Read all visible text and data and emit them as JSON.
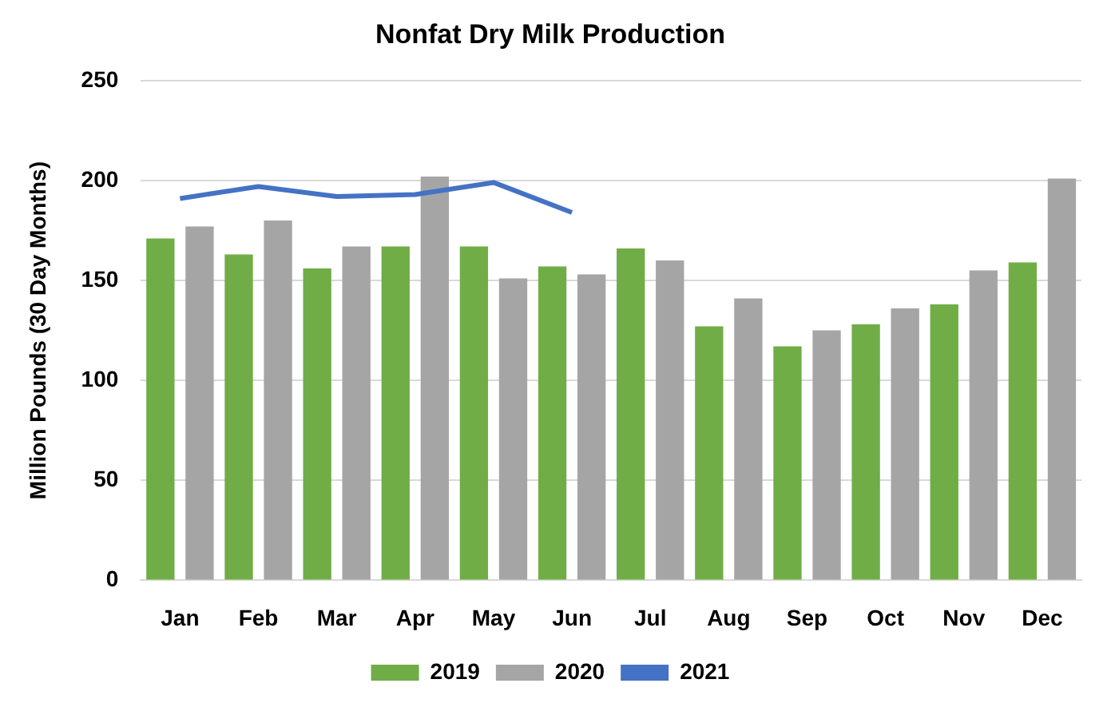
{
  "chart_data": {
    "type": "bar",
    "title": "Nonfat Dry Milk Production",
    "ylabel": "Million Pounds (30 Day Months)",
    "categories": [
      "Jan",
      "Feb",
      "Mar",
      "Apr",
      "May",
      "Jun",
      "Jul",
      "Aug",
      "Sep",
      "Oct",
      "Nov",
      "Dec"
    ],
    "series": [
      {
        "name": "2019",
        "color": "#70ad47",
        "values": [
          171,
          163,
          156,
          167,
          167,
          157,
          166,
          127,
          117,
          128,
          138,
          159
        ]
      },
      {
        "name": "2020",
        "color": "#a5a5a5",
        "values": [
          177,
          180,
          167,
          202,
          151,
          153,
          160,
          141,
          125,
          136,
          155,
          201
        ]
      },
      {
        "name": "2021",
        "type": "line",
        "color": "#4472c4",
        "values": [
          191,
          197,
          192,
          193,
          199,
          184,
          null,
          null,
          null,
          null,
          null,
          null
        ]
      }
    ],
    "ylim": [
      0,
      250
    ],
    "yticks": [
      0,
      50,
      100,
      150,
      200,
      250
    ],
    "grid": "y",
    "legend": "bottom",
    "marker": "none"
  }
}
